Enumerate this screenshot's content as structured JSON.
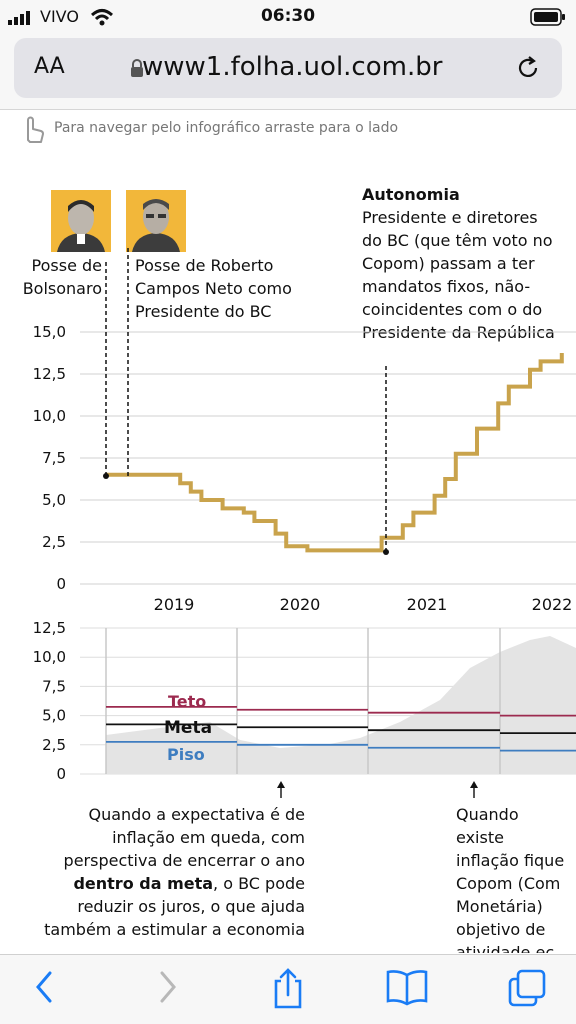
{
  "status": {
    "carrier": "VIVO",
    "time": "06:30"
  },
  "browser": {
    "aa_label": "AA",
    "url": "www1.folha.uol.com.br"
  },
  "tip": "Para navegar pelo infográfico arraste para o lado",
  "colors": {
    "rate": "#c9a34c",
    "teto": "#9c2a4f",
    "meta": "#111111",
    "piso": "#3e7dc0",
    "expectation": "#e4e4e4",
    "accent": "#1a7cf5"
  },
  "events": {
    "bolsonaro": "Posse de Bolsonaro",
    "campos_neto": "Posse de Roberto Campos Neto como Presidente do BC",
    "autonomia_title": "Autonomia",
    "autonomia_text": "Presidente e diretores do BC (que têm voto no Copom) passam a ter mandatos fixos, não-coincidentes com o do Presidente da República"
  },
  "annotations": {
    "left_pre": "Quando a expectativa é de inflação em queda, com perspectiva de encerrar o ano",
    "left_bold": "dentro da meta",
    "left_post": ", o BC pode reduzir os juros, o que ajuda também a estimular a economia",
    "right": "Quando existe inflação fique Copom (Com Monetária) objetivo de atividade ec consumo e e"
  },
  "chart_data": [
    {
      "type": "line",
      "ylim": [
        0,
        15
      ],
      "yticks": [
        "15,0",
        "12,5",
        "10,0",
        "7,5",
        "5,0",
        "2,5",
        "0"
      ],
      "xticks": [
        "2019",
        "2020",
        "2021",
        "2022"
      ],
      "series": [
        {
          "x": [
            "2019-01",
            "2019-07",
            "2019-08",
            "2019-09",
            "2019-10",
            "2019-12",
            "2020-02",
            "2020-03",
            "2020-05",
            "2020-06",
            "2020-08",
            "2021-03",
            "2021-05",
            "2021-06",
            "2021-08",
            "2021-09",
            "2021-10",
            "2021-12",
            "2022-02",
            "2022-03",
            "2022-05",
            "2022-06",
            "2022-08"
          ],
          "values": [
            6.5,
            6.5,
            6.0,
            5.5,
            5.0,
            4.5,
            4.25,
            3.75,
            3.0,
            2.25,
            2.0,
            2.75,
            3.5,
            4.25,
            5.25,
            6.25,
            7.75,
            9.25,
            10.75,
            11.75,
            12.75,
            13.25,
            13.75
          ]
        }
      ]
    },
    {
      "type": "line",
      "ylim": [
        0,
        12.5
      ],
      "yticks": [
        "12,5",
        "10,0",
        "7,5",
        "5,0",
        "2,5",
        "0"
      ],
      "series": [
        {
          "name": "Teto",
          "values": [
            5.75,
            5.5,
            5.25,
            5.0
          ]
        },
        {
          "name": "Meta",
          "values": [
            4.25,
            4.0,
            3.75,
            3.5
          ]
        },
        {
          "name": "Piso",
          "values": [
            2.75,
            2.5,
            2.25,
            2.0
          ]
        }
      ]
    }
  ]
}
